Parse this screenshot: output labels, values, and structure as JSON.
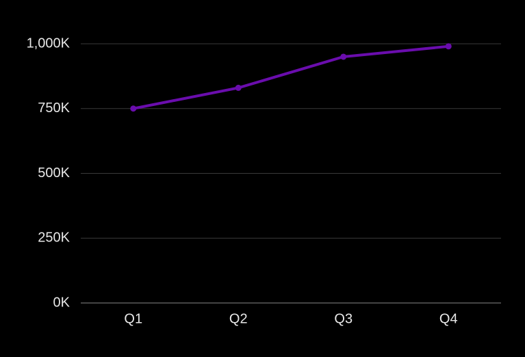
{
  "theme": {
    "background": "#000000",
    "line_color": "#6a0dad",
    "grid_color": "#3a3a3a",
    "baseline_color": "#8a8a8a",
    "text_color": "#e8e8e8"
  },
  "chart_data": {
    "type": "line",
    "title": "",
    "xlabel": "",
    "ylabel": "",
    "categories": [
      "Q1",
      "Q2",
      "Q3",
      "Q4"
    ],
    "series": [
      {
        "values": [
          750000,
          830000,
          950000,
          990000
        ]
      }
    ],
    "ylim": [
      0,
      1000000
    ],
    "yticks": [
      0,
      250000,
      500000,
      750000,
      1000000
    ],
    "ytick_labels": [
      "0K",
      "250K",
      "500K",
      "750K",
      "1,000K"
    ],
    "grid": true,
    "legend": "none",
    "markers": true
  }
}
